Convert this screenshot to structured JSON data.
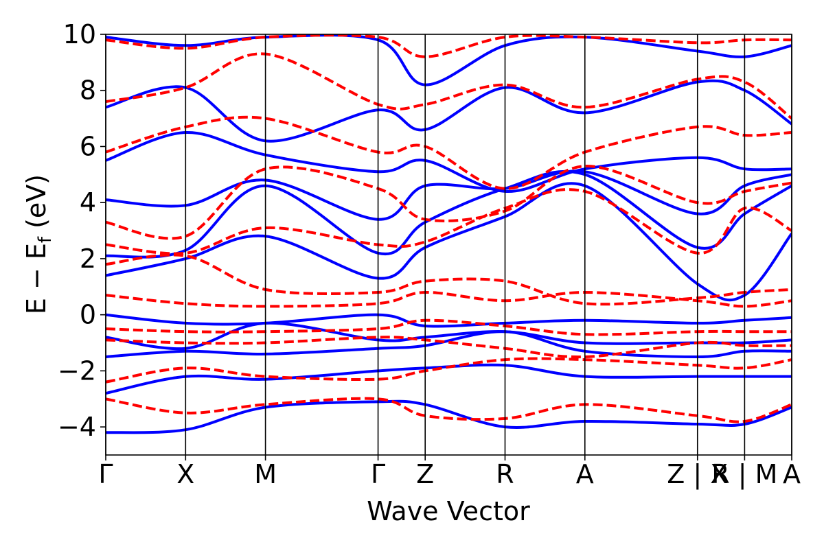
{
  "chart_data": {
    "type": "line",
    "title": "",
    "xlabel": "Wave Vector",
    "ylabel": "E − E",
    "ylabel_subscript": "f",
    "ylabel_unit": " (eV)",
    "ylim": [
      -5,
      10
    ],
    "yticks": [
      -4,
      -2,
      0,
      2,
      4,
      6,
      8,
      10
    ],
    "ytick_labels": [
      "−4",
      "−2",
      "0",
      "2",
      "4",
      "6",
      "8",
      "10"
    ],
    "kpath_segments": [
      "Γ–X",
      "X–M",
      "M–Γ",
      "Γ–Z",
      "Z–R",
      "R–A",
      "A–Z",
      "X|R",
      "M|A"
    ],
    "kpoint_ticks": [
      {
        "label": "Γ",
        "x": 0
      },
      {
        "label": "X",
        "x": 1.0
      },
      {
        "label": "M",
        "x": 2.0
      },
      {
        "label": "Γ",
        "x": 3.41
      },
      {
        "label": "Z",
        "x": 4.0
      },
      {
        "label": "R",
        "x": 5.0
      },
      {
        "label": "A",
        "x": 6.0
      },
      {
        "label": "Z | X",
        "x": 7.41
      },
      {
        "label": "R | M",
        "x": 8.0
      },
      {
        "label": "A",
        "x": 8.59
      }
    ],
    "xlim": [
      0,
      8.59
    ],
    "grid": false,
    "series": [
      {
        "style": "solid",
        "color": "#0000ff",
        "bands_at_kpoints": [
          [
            -4.2,
            -4.1,
            -3.3,
            -3.1,
            -3.2,
            -4.0,
            -3.8,
            -3.9,
            -3.9,
            -3.3
          ],
          [
            -2.8,
            -2.2,
            -2.3,
            -2.0,
            -1.9,
            -1.8,
            -2.2,
            -2.2,
            -2.2,
            -2.2
          ],
          [
            -1.5,
            -1.3,
            -1.4,
            -1.2,
            -1.1,
            -0.6,
            -1.3,
            -1.5,
            -1.3,
            -1.3
          ],
          [
            -0.8,
            -1.2,
            -0.3,
            -0.9,
            -0.8,
            -0.6,
            -1.0,
            -1.0,
            -1.0,
            -0.9
          ],
          [
            0.0,
            -0.3,
            -0.3,
            0.0,
            -0.4,
            -0.3,
            -0.2,
            -0.3,
            -0.2,
            -0.1
          ],
          [
            1.4,
            2.0,
            2.8,
            1.3,
            2.4,
            3.5,
            4.6,
            1.1,
            0.7,
            2.9
          ],
          [
            2.1,
            2.3,
            4.6,
            2.2,
            3.3,
            4.5,
            5.0,
            2.4,
            3.6,
            4.6
          ],
          [
            4.1,
            3.9,
            4.8,
            3.4,
            4.6,
            4.5,
            5.1,
            3.6,
            4.6,
            5.0
          ],
          [
            5.5,
            6.5,
            5.7,
            5.1,
            5.5,
            4.4,
            5.2,
            5.6,
            5.2,
            5.2
          ],
          [
            7.4,
            8.1,
            6.2,
            7.3,
            6.6,
            8.1,
            7.2,
            8.3,
            8.0,
            6.8
          ],
          [
            9.9,
            9.6,
            9.9,
            9.8,
            8.2,
            9.6,
            9.9,
            9.4,
            9.2,
            9.6
          ]
        ]
      },
      {
        "style": "dashed",
        "color": "#ff0000",
        "bands_at_kpoints": [
          [
            -3.0,
            -3.5,
            -3.2,
            -3.0,
            -3.6,
            -3.7,
            -3.2,
            -3.6,
            -3.8,
            -3.2
          ],
          [
            -2.4,
            -1.9,
            -2.2,
            -2.3,
            -2.0,
            -1.6,
            -1.6,
            -1.8,
            -1.9,
            -1.6
          ],
          [
            -0.9,
            -1.0,
            -1.0,
            -0.8,
            -0.9,
            -1.2,
            -1.5,
            -1.0,
            -1.1,
            -1.1
          ],
          [
            -0.5,
            -0.6,
            -0.6,
            -0.5,
            -0.2,
            -0.4,
            -0.7,
            -0.6,
            -0.6,
            -0.6
          ],
          [
            0.7,
            0.4,
            0.3,
            0.4,
            0.8,
            0.5,
            0.8,
            0.5,
            0.3,
            0.5
          ],
          [
            1.8,
            2.1,
            0.9,
            0.8,
            1.2,
            1.2,
            0.4,
            0.6,
            0.8,
            0.9
          ],
          [
            2.5,
            2.2,
            3.1,
            2.5,
            2.6,
            3.8,
            4.4,
            2.2,
            3.8,
            3.0
          ],
          [
            3.3,
            2.8,
            5.2,
            4.5,
            3.4,
            3.7,
            5.3,
            4.0,
            4.4,
            4.7
          ],
          [
            5.8,
            6.7,
            7.0,
            5.8,
            6.0,
            4.5,
            5.8,
            6.7,
            6.4,
            6.5
          ],
          [
            7.6,
            8.1,
            9.3,
            7.5,
            7.5,
            8.2,
            7.4,
            8.4,
            8.3,
            7.0
          ],
          [
            9.8,
            9.5,
            9.9,
            9.9,
            9.2,
            9.9,
            9.9,
            9.7,
            9.8,
            9.8
          ]
        ]
      }
    ]
  }
}
